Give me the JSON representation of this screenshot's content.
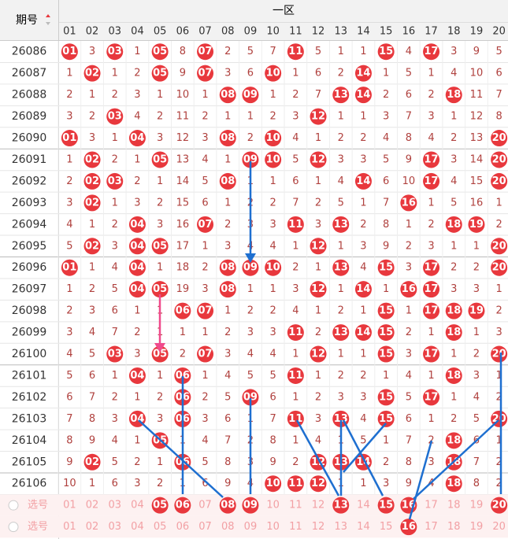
{
  "header": {
    "period_label": "期号",
    "zone_label": "一区",
    "columns": [
      "01",
      "02",
      "03",
      "04",
      "05",
      "06",
      "07",
      "08",
      "09",
      "10",
      "11",
      "12",
      "13",
      "14",
      "15",
      "16",
      "17",
      "18",
      "19",
      "20"
    ]
  },
  "rows": [
    {
      "period": "26086",
      "cells": [
        {
          "ball": "01"
        },
        3,
        {
          "ball": "03"
        },
        1,
        {
          "ball": "05"
        },
        8,
        {
          "ball": "07"
        },
        2,
        5,
        7,
        {
          "ball": "11"
        },
        5,
        1,
        1,
        {
          "ball": "15"
        },
        4,
        {
          "ball": "17"
        },
        3,
        9,
        5
      ]
    },
    {
      "period": "26087",
      "cells": [
        1,
        {
          "ball": "02"
        },
        1,
        2,
        {
          "ball": "05"
        },
        9,
        {
          "ball": "07"
        },
        3,
        6,
        {
          "ball": "10"
        },
        1,
        6,
        2,
        {
          "ball": "14"
        },
        1,
        5,
        1,
        4,
        10,
        6
      ]
    },
    {
      "period": "26088",
      "cells": [
        2,
        1,
        2,
        3,
        1,
        10,
        1,
        {
          "ball": "08"
        },
        {
          "ball": "09"
        },
        1,
        2,
        7,
        {
          "ball": "13"
        },
        {
          "ball": "14"
        },
        2,
        6,
        2,
        {
          "ball": "18"
        },
        11,
        7
      ]
    },
    {
      "period": "26089",
      "cells": [
        3,
        2,
        {
          "ball": "03"
        },
        4,
        2,
        11,
        2,
        1,
        1,
        2,
        3,
        {
          "ball": "12"
        },
        1,
        1,
        3,
        7,
        3,
        1,
        12,
        8
      ]
    },
    {
      "period": "26090",
      "cells": [
        {
          "ball": "01"
        },
        3,
        1,
        {
          "ball": "04"
        },
        3,
        12,
        3,
        {
          "ball": "08"
        },
        2,
        {
          "ball": "10"
        },
        4,
        1,
        2,
        2,
        4,
        8,
        4,
        2,
        13,
        {
          "ball": "20"
        }
      ]
    },
    {
      "period": "26091",
      "cells": [
        1,
        {
          "ball": "02"
        },
        2,
        1,
        {
          "ball": "05"
        },
        13,
        4,
        1,
        {
          "ball": "09"
        },
        {
          "ball": "10"
        },
        5,
        {
          "ball": "12"
        },
        3,
        3,
        5,
        9,
        {
          "ball": "17"
        },
        3,
        14,
        {
          "ball": "20"
        }
      ]
    },
    {
      "period": "26092",
      "cells": [
        2,
        {
          "ball": "02"
        },
        {
          "ball": "03"
        },
        2,
        1,
        14,
        5,
        {
          "ball": "08"
        },
        1,
        1,
        6,
        1,
        4,
        {
          "ball": "14"
        },
        6,
        10,
        {
          "ball": "17"
        },
        4,
        15,
        {
          "ball": "20"
        }
      ]
    },
    {
      "period": "26093",
      "cells": [
        3,
        {
          "ball": "02"
        },
        1,
        3,
        2,
        15,
        6,
        1,
        2,
        2,
        7,
        2,
        5,
        1,
        7,
        {
          "ball": "16"
        },
        1,
        5,
        16,
        1
      ]
    },
    {
      "period": "26094",
      "cells": [
        4,
        1,
        2,
        {
          "ball": "04"
        },
        3,
        16,
        {
          "ball": "07"
        },
        2,
        3,
        3,
        {
          "ball": "11"
        },
        3,
        {
          "ball": "13"
        },
        2,
        8,
        1,
        2,
        {
          "ball": "18"
        },
        {
          "ball": "19"
        },
        2
      ]
    },
    {
      "period": "26095",
      "cells": [
        5,
        {
          "ball": "02"
        },
        3,
        {
          "ball": "04"
        },
        {
          "ball": "05"
        },
        17,
        1,
        3,
        4,
        4,
        1,
        {
          "ball": "12"
        },
        1,
        3,
        9,
        2,
        3,
        1,
        1,
        {
          "ball": "20"
        }
      ]
    },
    {
      "period": "26096",
      "cells": [
        {
          "ball": "01"
        },
        1,
        4,
        {
          "ball": "04"
        },
        1,
        18,
        2,
        {
          "ball": "08"
        },
        {
          "ball": "09"
        },
        {
          "ball": "10"
        },
        2,
        1,
        {
          "ball": "13"
        },
        4,
        {
          "ball": "15"
        },
        3,
        {
          "ball": "17"
        },
        2,
        2,
        {
          "ball": "20"
        }
      ]
    },
    {
      "period": "26097",
      "cells": [
        1,
        2,
        5,
        {
          "ball": "04"
        },
        {
          "ball": "05"
        },
        19,
        3,
        {
          "ball": "08"
        },
        1,
        1,
        3,
        {
          "ball": "12"
        },
        1,
        {
          "ball": "14"
        },
        1,
        {
          "ball": "16"
        },
        {
          "ball": "17"
        },
        3,
        3,
        1
      ]
    },
    {
      "period": "26098",
      "cells": [
        2,
        3,
        6,
        1,
        1,
        {
          "ball": "06"
        },
        {
          "ball": "07"
        },
        1,
        2,
        2,
        4,
        1,
        2,
        1,
        {
          "ball": "15"
        },
        1,
        {
          "ball": "17"
        },
        {
          "ball": "18"
        },
        {
          "ball": "19"
        },
        2
      ]
    },
    {
      "period": "26099",
      "cells": [
        3,
        4,
        7,
        2,
        1,
        1,
        1,
        2,
        3,
        3,
        {
          "ball": "11"
        },
        2,
        {
          "ball": "13"
        },
        {
          "ball": "14"
        },
        {
          "ball": "15"
        },
        2,
        1,
        {
          "ball": "18"
        },
        1,
        3
      ]
    },
    {
      "period": "26100",
      "cells": [
        4,
        5,
        {
          "ball": "03"
        },
        3,
        {
          "ball": "05"
        },
        2,
        {
          "ball": "07"
        },
        3,
        4,
        4,
        1,
        {
          "ball": "12"
        },
        1,
        1,
        {
          "ball": "15"
        },
        3,
        {
          "ball": "17"
        },
        1,
        2,
        {
          "ball": "20"
        }
      ]
    },
    {
      "period": "26101",
      "cells": [
        5,
        6,
        1,
        {
          "ball": "04"
        },
        1,
        {
          "ball": "06"
        },
        1,
        4,
        5,
        5,
        {
          "ball": "11"
        },
        1,
        2,
        2,
        1,
        4,
        1,
        {
          "ball": "18"
        },
        3,
        1
      ]
    },
    {
      "period": "26102",
      "cells": [
        6,
        7,
        2,
        1,
        2,
        {
          "ball": "06"
        },
        2,
        5,
        {
          "ball": "09"
        },
        6,
        1,
        2,
        3,
        3,
        {
          "ball": "15"
        },
        5,
        {
          "ball": "17"
        },
        1,
        4,
        2
      ]
    },
    {
      "period": "26103",
      "cells": [
        7,
        8,
        3,
        {
          "ball": "04"
        },
        3,
        {
          "ball": "06"
        },
        3,
        6,
        1,
        7,
        {
          "ball": "11"
        },
        3,
        {
          "ball": "13"
        },
        4,
        {
          "ball": "15"
        },
        6,
        1,
        2,
        5,
        {
          "ball": "20"
        }
      ]
    },
    {
      "period": "26104",
      "cells": [
        8,
        9,
        4,
        1,
        {
          "ball": "05"
        },
        1,
        4,
        7,
        2,
        8,
        1,
        4,
        1,
        5,
        1,
        7,
        2,
        {
          "ball": "18"
        },
        6,
        1
      ]
    },
    {
      "period": "26105",
      "cells": [
        9,
        {
          "ball": "02"
        },
        5,
        2,
        1,
        {
          "ball": "06"
        },
        5,
        8,
        3,
        9,
        2,
        {
          "ball": "12"
        },
        {
          "ball": "13"
        },
        {
          "ball": "14"
        },
        2,
        8,
        3,
        {
          "ball": "18"
        },
        7,
        2
      ]
    },
    {
      "period": "26106",
      "cells": [
        10,
        1,
        6,
        3,
        2,
        1,
        6,
        9,
        4,
        {
          "ball": "10"
        },
        {
          "ball": "11"
        },
        {
          "ball": "12"
        },
        1,
        1,
        3,
        9,
        4,
        {
          "ball": "18"
        },
        8,
        2
      ]
    }
  ],
  "select_rows": [
    {
      "label": "选号",
      "numbers": [
        "01",
        "02",
        "03",
        "04",
        {
          "ball": "05"
        },
        {
          "ball": "06"
        },
        "07",
        {
          "ball": "08"
        },
        {
          "ball": "09"
        },
        "10",
        "11",
        "12",
        {
          "ball": "13"
        },
        "14",
        {
          "ball": "15"
        },
        {
          "ball": "16"
        },
        "17",
        "18",
        "19",
        {
          "ball": "20"
        }
      ]
    },
    {
      "label": "选号",
      "numbers": [
        "01",
        "02",
        "03",
        "04",
        "05",
        "06",
        "07",
        "08",
        "09",
        "10",
        "11",
        "12",
        "13",
        "14",
        "15",
        {
          "ball": "16"
        },
        "17",
        "18",
        "19",
        "20"
      ]
    }
  ]
}
